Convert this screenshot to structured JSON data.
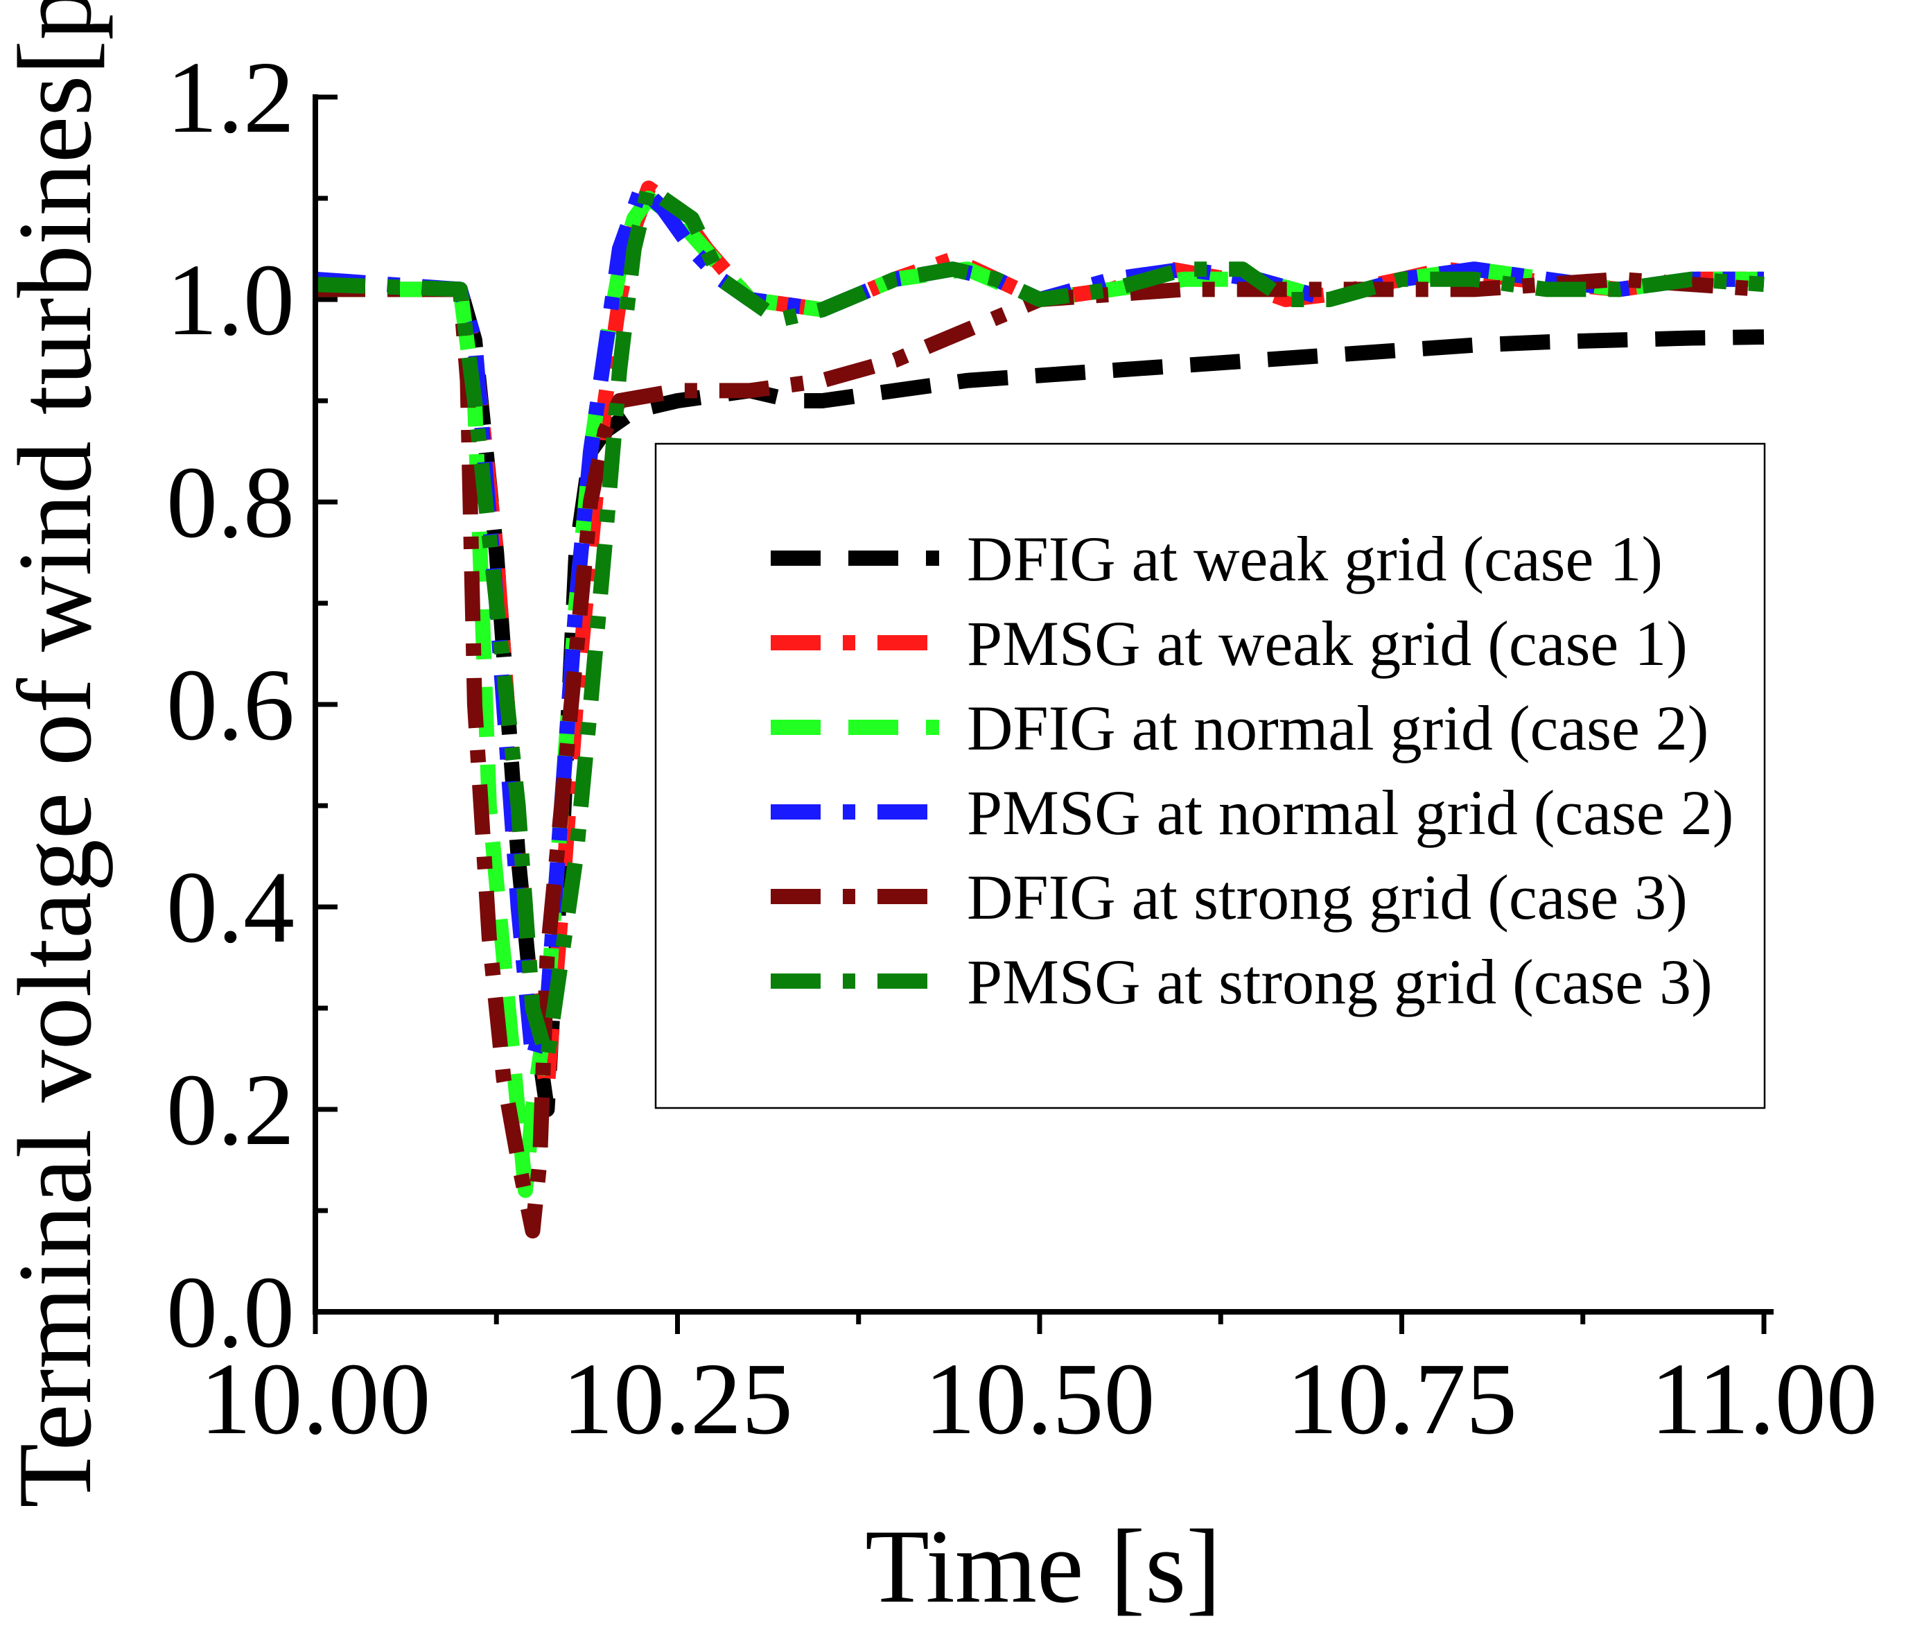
{
  "chart_data": {
    "type": "line",
    "title": "",
    "xlabel": "Time [s]",
    "ylabel": "Terminal voltage of wind turbines[pu]",
    "xlim": [
      10.0,
      11.0
    ],
    "ylim": [
      0.0,
      1.2
    ],
    "x_ticks": [
      "10.00",
      "10.25",
      "10.50",
      "10.75",
      "11.00"
    ],
    "y_ticks": [
      "0.0",
      "0.2",
      "0.4",
      "0.6",
      "0.8",
      "1.0",
      "1.2"
    ],
    "legend_position": "center-right",
    "series": [
      {
        "name": "DFIG at weak grid (case 1)",
        "color": "#000000",
        "dash": "dash",
        "x": [
          10.0,
          10.1,
          10.11,
          10.125,
          10.14,
          10.15,
          10.16,
          10.17,
          10.18,
          10.19,
          10.2,
          10.21,
          10.22,
          10.25,
          10.3,
          10.33,
          10.35,
          10.4,
          10.45,
          10.5,
          10.55,
          10.6,
          10.65,
          10.7,
          10.75,
          10.8,
          10.85,
          10.9,
          10.95,
          11.0
        ],
        "y": [
          1.01,
          1.01,
          0.96,
          0.75,
          0.45,
          0.3,
          0.2,
          0.45,
          0.75,
          0.85,
          0.87,
          0.88,
          0.89,
          0.9,
          0.91,
          0.9,
          0.9,
          0.91,
          0.92,
          0.925,
          0.93,
          0.935,
          0.94,
          0.945,
          0.95,
          0.955,
          0.958,
          0.96,
          0.962,
          0.963
        ]
      },
      {
        "name": "PMSG at weak grid (case 1)",
        "color": "#ff1a1a",
        "dash": "dashdot",
        "x": [
          10.0,
          10.1,
          10.11,
          10.125,
          10.14,
          10.15,
          10.16,
          10.17,
          10.18,
          10.19,
          10.2,
          10.21,
          10.22,
          10.23,
          10.25,
          10.27,
          10.3,
          10.35,
          10.4,
          10.44,
          10.47,
          10.5,
          10.55,
          10.59,
          10.63,
          10.67,
          10.7,
          10.75,
          10.78,
          10.83,
          10.9,
          10.95,
          11.0
        ],
        "y": [
          1.01,
          1.01,
          0.95,
          0.75,
          0.45,
          0.3,
          0.22,
          0.4,
          0.6,
          0.75,
          0.9,
          1.0,
          1.07,
          1.11,
          1.09,
          1.05,
          1.0,
          0.99,
          1.02,
          1.04,
          1.02,
          1.0,
          1.01,
          1.03,
          1.02,
          1.0,
          1.005,
          1.02,
          1.03,
          1.02,
          1.01,
          1.02,
          1.02
        ]
      },
      {
        "name": "DFIG at normal grid (case 2)",
        "color": "#22ff22",
        "dash": "dash",
        "x": [
          10.0,
          10.1,
          10.11,
          10.12,
          10.13,
          10.145,
          10.15,
          10.16,
          10.17,
          10.18,
          10.19,
          10.2,
          10.21,
          10.22,
          10.23,
          10.25,
          10.3,
          10.35,
          10.4,
          10.45,
          10.5,
          10.55,
          10.6,
          10.65,
          10.7,
          10.75,
          10.8,
          10.85,
          10.9,
          10.95,
          11.0
        ],
        "y": [
          1.01,
          1.01,
          0.9,
          0.5,
          0.35,
          0.12,
          0.2,
          0.3,
          0.5,
          0.7,
          0.85,
          0.95,
          1.03,
          1.08,
          1.1,
          1.08,
          1.0,
          0.99,
          1.02,
          1.03,
          1.0,
          1.01,
          1.02,
          1.02,
          1.0,
          1.02,
          1.03,
          1.02,
          1.01,
          1.02,
          1.02
        ]
      },
      {
        "name": "PMSG at normal grid (case 2)",
        "color": "#1a1aff",
        "dash": "dashdot",
        "x": [
          10.0,
          10.1,
          10.11,
          10.125,
          10.14,
          10.15,
          10.16,
          10.17,
          10.18,
          10.19,
          10.2,
          10.21,
          10.225,
          10.24,
          10.26,
          10.28,
          10.3,
          10.35,
          10.4,
          10.44,
          10.47,
          10.5,
          10.55,
          10.6,
          10.65,
          10.7,
          10.75,
          10.8,
          10.85,
          10.9,
          10.95,
          11.0
        ],
        "y": [
          1.02,
          1.01,
          0.96,
          0.7,
          0.4,
          0.25,
          0.3,
          0.5,
          0.7,
          0.85,
          0.95,
          1.05,
          1.11,
          1.09,
          1.05,
          1.02,
          1.0,
          0.99,
          1.02,
          1.03,
          1.02,
          1.0,
          1.02,
          1.03,
          1.02,
          1.0,
          1.02,
          1.03,
          1.02,
          1.01,
          1.02,
          1.02
        ]
      },
      {
        "name": "DFIG at strong grid (case 3)",
        "color": "#7a0a0a",
        "dash": "dashdot",
        "x": [
          10.0,
          10.1,
          10.105,
          10.11,
          10.12,
          10.13,
          10.14,
          10.15,
          10.155,
          10.16,
          10.17,
          10.18,
          10.19,
          10.2,
          10.21,
          10.25,
          10.3,
          10.35,
          10.4,
          10.45,
          10.5,
          10.6,
          10.7,
          10.8,
          10.9,
          11.0
        ],
        "y": [
          1.01,
          1.01,
          0.92,
          0.6,
          0.37,
          0.23,
          0.15,
          0.08,
          0.15,
          0.35,
          0.5,
          0.65,
          0.8,
          0.87,
          0.9,
          0.91,
          0.91,
          0.92,
          0.94,
          0.97,
          1.0,
          1.01,
          1.01,
          1.01,
          1.02,
          1.01
        ]
      },
      {
        "name": "PMSG at strong grid (case 3)",
        "color": "#0a800a",
        "dash": "dashdot",
        "x": [
          10.0,
          10.1,
          10.11,
          10.125,
          10.14,
          10.15,
          10.16,
          10.17,
          10.18,
          10.19,
          10.2,
          10.21,
          10.22,
          10.23,
          10.24,
          10.26,
          10.28,
          10.3,
          10.32,
          10.35,
          10.4,
          10.44,
          10.47,
          10.5,
          10.55,
          10.6,
          10.64,
          10.67,
          10.7,
          10.75,
          10.8,
          10.85,
          10.9,
          10.95,
          11.0
        ],
        "y": [
          1.015,
          1.01,
          0.9,
          0.7,
          0.5,
          0.3,
          0.25,
          0.35,
          0.45,
          0.6,
          0.76,
          0.93,
          1.05,
          1.11,
          1.1,
          1.08,
          1.02,
          1.0,
          0.98,
          0.99,
          1.02,
          1.03,
          1.02,
          1.0,
          1.01,
          1.03,
          1.03,
          1.0,
          1.0,
          1.02,
          1.02,
          1.01,
          1.01,
          1.02,
          1.015
        ]
      }
    ]
  }
}
